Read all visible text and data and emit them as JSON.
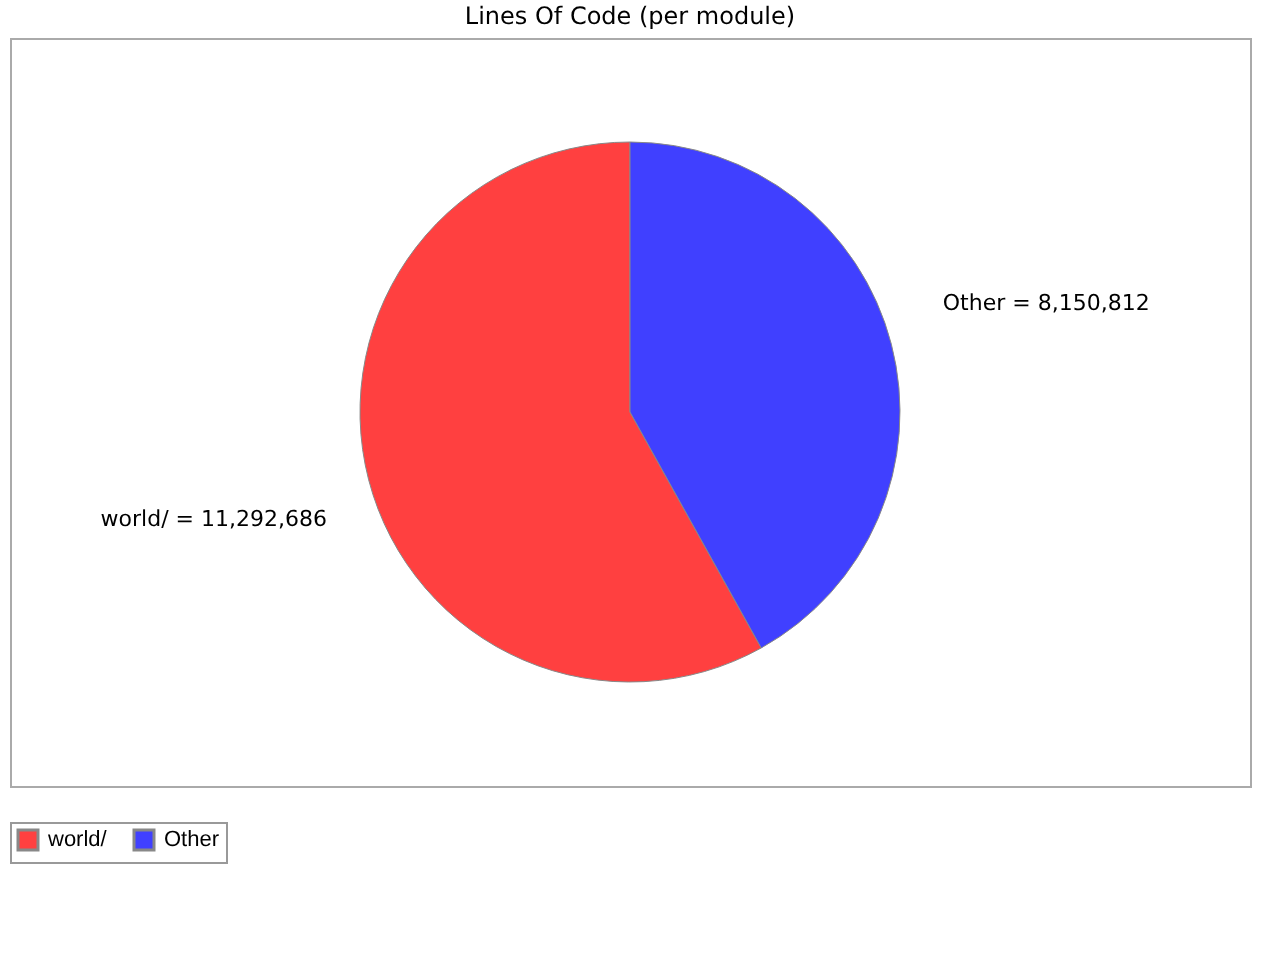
{
  "chart_data": {
    "type": "pie",
    "title": "Lines Of Code (per module)",
    "categories": [
      "world/",
      "Other"
    ],
    "values": [
      11292686,
      8150812
    ],
    "colors": [
      "#ff4040",
      "#4040ff"
    ],
    "value_labels": [
      "world/ = 11,292,686",
      "Other = 8,150,812"
    ],
    "legend": "bottom"
  }
}
